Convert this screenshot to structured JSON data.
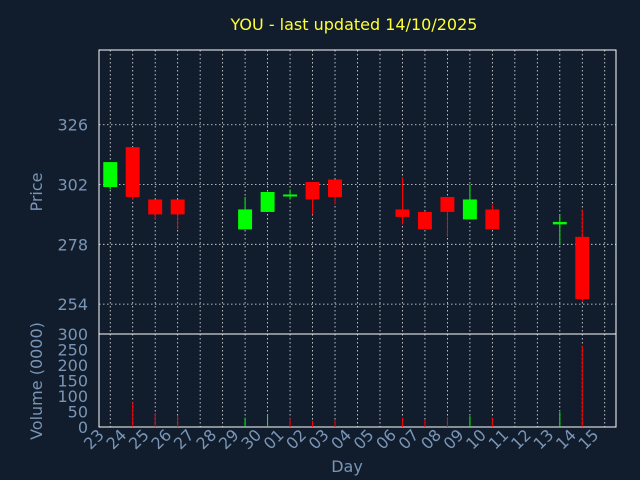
{
  "chart_data": [
    {
      "type": "candlestick",
      "title": "YOU - last updated 14/10/2025",
      "ylabel": "Price",
      "xlabel": "Day",
      "ylim": [
        242,
        356
      ],
      "yticks": [
        254,
        278,
        302,
        326
      ],
      "grid": true,
      "colors": {
        "up": "#00ff00",
        "down": "#ff0000",
        "background": "#111d2d",
        "text": "#7a95b5",
        "title": "#ffff33",
        "grid": "#ffffff"
      },
      "categories": [
        "23",
        "24",
        "25",
        "26",
        "27",
        "28",
        "29",
        "30",
        "01",
        "02",
        "03",
        "04",
        "05",
        "06",
        "07",
        "08",
        "09",
        "10",
        "11",
        "12",
        "13",
        "14",
        "15"
      ],
      "candles": [
        {
          "x": "23",
          "open": 301,
          "high": 311,
          "low": 300,
          "close": 311
        },
        {
          "x": "24",
          "open": 317,
          "high": 317,
          "low": 296,
          "close": 297
        },
        {
          "x": "25",
          "open": 296,
          "high": 296,
          "low": 288,
          "close": 290
        },
        {
          "x": "26",
          "open": 296,
          "high": 296,
          "low": 284,
          "close": 290
        },
        {
          "x": "29",
          "open": 284,
          "high": 297,
          "low": 284,
          "close": 292
        },
        {
          "x": "30",
          "open": 291,
          "high": 299,
          "low": 291,
          "close": 299
        },
        {
          "x": "01",
          "open": 298,
          "high": 300,
          "low": 296,
          "close": 298
        },
        {
          "x": "02",
          "open": 303,
          "high": 303,
          "low": 290,
          "close": 296
        },
        {
          "x": "03",
          "open": 304,
          "high": 304,
          "low": 294,
          "close": 297
        },
        {
          "x": "06",
          "open": 292,
          "high": 305,
          "low": 286,
          "close": 289
        },
        {
          "x": "07",
          "open": 291,
          "high": 291,
          "low": 284,
          "close": 284
        },
        {
          "x": "08",
          "open": 297,
          "high": 297,
          "low": 281,
          "close": 291
        },
        {
          "x": "09",
          "open": 288,
          "high": 302,
          "low": 288,
          "close": 296
        },
        {
          "x": "10",
          "open": 292,
          "high": 294,
          "low": 284,
          "close": 284
        },
        {
          "x": "13",
          "open": 286,
          "high": 290,
          "low": 278,
          "close": 287
        },
        {
          "x": "14",
          "open": 281,
          "high": 292,
          "low": 255,
          "close": 256
        }
      ]
    },
    {
      "type": "bar",
      "ylabel": "Volume (0000)",
      "xlabel": "Day",
      "ylim": [
        0,
        300
      ],
      "yticks": [
        0,
        50,
        100,
        150,
        200,
        250,
        300
      ],
      "categories": [
        "23",
        "24",
        "25",
        "26",
        "27",
        "28",
        "29",
        "30",
        "01",
        "02",
        "03",
        "04",
        "05",
        "06",
        "07",
        "08",
        "09",
        "10",
        "11",
        "12",
        "13",
        "14",
        "15"
      ],
      "bars": [
        {
          "x": "23",
          "value": 0,
          "color": "up"
        },
        {
          "x": "24",
          "value": 80,
          "color": "down"
        },
        {
          "x": "25",
          "value": 45,
          "color": "down"
        },
        {
          "x": "26",
          "value": 38,
          "color": "down"
        },
        {
          "x": "29",
          "value": 30,
          "color": "up"
        },
        {
          "x": "30",
          "value": 42,
          "color": "up"
        },
        {
          "x": "01",
          "value": 28,
          "color": "down"
        },
        {
          "x": "02",
          "value": 20,
          "color": "down"
        },
        {
          "x": "03",
          "value": 22,
          "color": "down"
        },
        {
          "x": "06",
          "value": 30,
          "color": "down"
        },
        {
          "x": "07",
          "value": 25,
          "color": "down"
        },
        {
          "x": "08",
          "value": 32,
          "color": "down"
        },
        {
          "x": "09",
          "value": 35,
          "color": "up"
        },
        {
          "x": "10",
          "value": 30,
          "color": "down"
        },
        {
          "x": "13",
          "value": 48,
          "color": "up"
        },
        {
          "x": "14",
          "value": 262,
          "color": "down"
        }
      ]
    }
  ]
}
